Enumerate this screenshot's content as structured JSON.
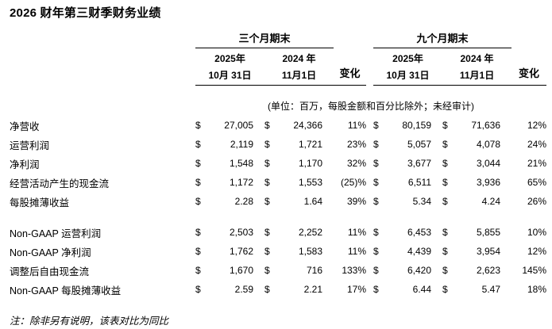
{
  "title": "2026 财年第三财季财务业绩",
  "table": {
    "currency": "$",
    "unit_note": "(单位：百万，每股金额和百分比除外；未经审计)",
    "header": {
      "three_month": {
        "group_label": "三个月期末",
        "year_2025": "2025年",
        "date_2025": "10月 31日",
        "year_2024": "2024 年",
        "date_2024": "11月1日",
        "change_label": "变化"
      },
      "nine_month": {
        "group_label": "九个月期末",
        "year_2025": "2025年",
        "date_2025": "10月 31日",
        "year_2024": "2024 年",
        "date_2024": "11月1日",
        "change_label": "变化"
      }
    },
    "rows": [
      {
        "label": "净营收",
        "q3_2025": "27,005",
        "q3_2024": "24,366",
        "q3_change": "11%",
        "ytd_2025": "80,159",
        "ytd_2024": "71,636",
        "ytd_change": "12%"
      },
      {
        "label": "运营利润",
        "q3_2025": "2,119",
        "q3_2024": "1,721",
        "q3_change": "23%",
        "ytd_2025": "5,057",
        "ytd_2024": "4,078",
        "ytd_change": "24%"
      },
      {
        "label": "净利润",
        "q3_2025": "1,548",
        "q3_2024": "1,170",
        "q3_change": "32%",
        "ytd_2025": "3,677",
        "ytd_2024": "3,044",
        "ytd_change": "21%"
      },
      {
        "label": "经营活动产生的现金流",
        "q3_2025": "1,172",
        "q3_2024": "1,553",
        "q3_change": "(25)%",
        "ytd_2025": "6,511",
        "ytd_2024": "3,936",
        "ytd_change": "65%"
      },
      {
        "label": "每股摊薄收益",
        "q3_2025": "2.28",
        "q3_2024": "1.64",
        "q3_change": "39%",
        "ytd_2025": "5.34",
        "ytd_2024": "4.24",
        "ytd_change": "26%"
      },
      {
        "label": "Non-GAAP 运营利润",
        "gap_before": true,
        "q3_2025": "2,503",
        "q3_2024": "2,252",
        "q3_change": "11%",
        "ytd_2025": "6,453",
        "ytd_2024": "5,855",
        "ytd_change": "10%"
      },
      {
        "label": "Non-GAAP 净利润",
        "q3_2025": "1,762",
        "q3_2024": "1,583",
        "q3_change": "11%",
        "ytd_2025": "4,439",
        "ytd_2024": "3,954",
        "ytd_change": "12%"
      },
      {
        "label": "调整后自由现金流",
        "q3_2025": "1,670",
        "q3_2024": "716",
        "q3_change": "133%",
        "ytd_2025": "6,420",
        "ytd_2024": "2,623",
        "ytd_change": "145%"
      },
      {
        "label": "Non-GAAP 每股摊薄收益",
        "q3_2025": "2.59",
        "q3_2024": "2.21",
        "q3_change": "17%",
        "ytd_2025": "6.44",
        "ytd_2024": "5.47",
        "ytd_change": "18%"
      }
    ]
  },
  "footnote": "注：除非另有说明，该表对比为同比"
}
